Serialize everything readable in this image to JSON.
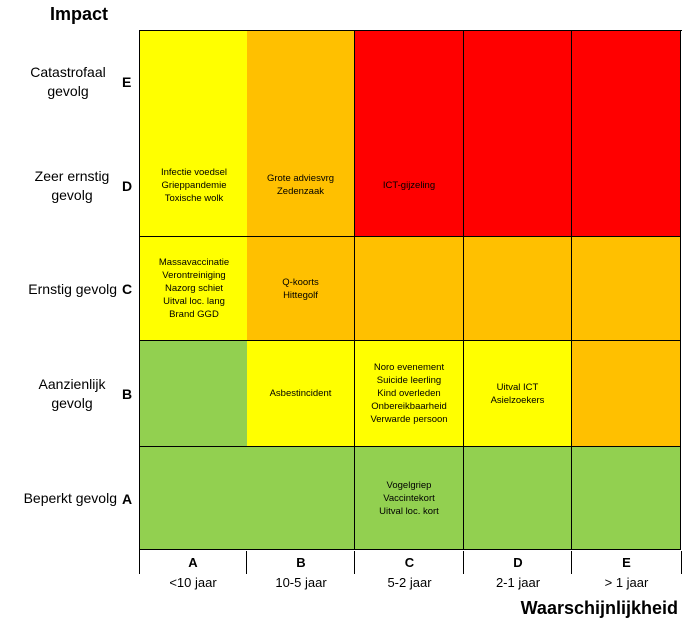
{
  "chart_data": {
    "type": "heatmap",
    "title_y": "Impact",
    "title_x": "Waarschijnlijkheid",
    "colors": {
      "green": "#92d050",
      "yellow": "#ffff00",
      "orange": "#ffc000",
      "red": "#ff0000"
    },
    "columns": [
      {
        "letter": "A",
        "label": "<10 jaar"
      },
      {
        "letter": "B",
        "label": "10-5 jaar"
      },
      {
        "letter": "C",
        "label": "5-2 jaar"
      },
      {
        "letter": "D",
        "label": "2-1 jaar"
      },
      {
        "letter": "E",
        "label": "> 1 jaar"
      }
    ],
    "rows": [
      {
        "letter": "E",
        "label": "Catastrofaal gevolg",
        "cells": [
          {
            "color": "yellow",
            "items": []
          },
          {
            "color": "orange",
            "items": []
          },
          {
            "color": "red",
            "items": []
          },
          {
            "color": "red",
            "items": []
          },
          {
            "color": "red",
            "items": []
          }
        ]
      },
      {
        "letter": "D",
        "label": "Zeer ernstig gevolg",
        "cells": [
          {
            "color": "yellow",
            "items": [
              "Infectie voedsel",
              "Grieppandemie",
              "Toxische wolk"
            ]
          },
          {
            "color": "orange",
            "items": [
              "Grote adviesvrg",
              "Zedenzaak"
            ]
          },
          {
            "color": "red",
            "items": [
              "ICT-gijzeling"
            ]
          },
          {
            "color": "red",
            "items": []
          },
          {
            "color": "red",
            "items": []
          }
        ]
      },
      {
        "letter": "C",
        "label": "Ernstig gevolg",
        "cells": [
          {
            "color": "yellow",
            "items": [
              "Massavaccinatie",
              "Verontreiniging",
              "Nazorg schiet",
              "Uitval loc. lang",
              "Brand GGD"
            ]
          },
          {
            "color": "orange",
            "items": [
              "Q-koorts",
              "Hittegolf"
            ]
          },
          {
            "color": "orange",
            "items": []
          },
          {
            "color": "orange",
            "items": []
          },
          {
            "color": "orange",
            "items": []
          }
        ]
      },
      {
        "letter": "B",
        "label": "Aanzienlijk gevolg",
        "cells": [
          {
            "color": "green",
            "items": []
          },
          {
            "color": "yellow",
            "items": [
              "Asbestincident"
            ]
          },
          {
            "color": "yellow",
            "items": [
              "Noro evenement",
              "Suicide leerling",
              "Kind overleden",
              "Onbereikbaarheid",
              "Verwarde persoon"
            ]
          },
          {
            "color": "yellow",
            "items": [
              "Uitval ICT",
              "Asielzoekers"
            ]
          },
          {
            "color": "orange",
            "items": []
          }
        ]
      },
      {
        "letter": "A",
        "label": "Beperkt gevolg",
        "cells": [
          {
            "color": "green",
            "items": []
          },
          {
            "color": "green",
            "items": []
          },
          {
            "color": "green",
            "items": [
              "Vogelgriep",
              "Vaccintekort",
              "Uitval loc. kort"
            ]
          },
          {
            "color": "green",
            "items": []
          },
          {
            "color": "green",
            "items": []
          }
        ]
      }
    ]
  }
}
